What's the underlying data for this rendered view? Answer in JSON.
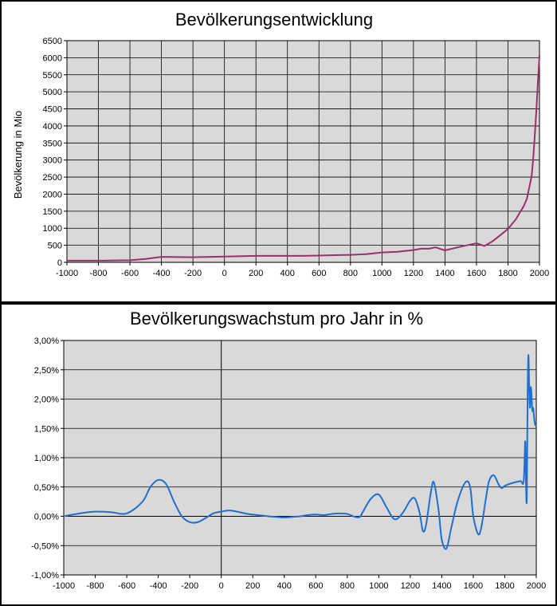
{
  "chart_data": [
    {
      "type": "line",
      "title": "Bevölkerungsentwicklung",
      "xlabel": "",
      "ylabel": "Bevölkerung in Mio",
      "xlim": [
        -1000,
        2000
      ],
      "ylim": [
        0,
        6500
      ],
      "x_ticks": [
        "-1000",
        "-800",
        "-600",
        "-400",
        "-200",
        "0",
        "200",
        "400",
        "600",
        "800",
        "1000",
        "1200",
        "1400",
        "1600",
        "1800",
        "2000"
      ],
      "y_ticks": [
        "0",
        "500",
        "1000",
        "1500",
        "2000",
        "2500",
        "3000",
        "3500",
        "4000",
        "4500",
        "5000",
        "5500",
        "6000",
        "6500"
      ],
      "grid": true,
      "series": [
        {
          "color": "#993366",
          "x": [
            -1000,
            -800,
            -600,
            -500,
            -400,
            -300,
            -200,
            0,
            200,
            400,
            500,
            600,
            700,
            800,
            900,
            1000,
            1100,
            1200,
            1250,
            1300,
            1340,
            1400,
            1500,
            1600,
            1650,
            1700,
            1750,
            1800,
            1850,
            1900,
            1920,
            1940,
            1950,
            1960,
            1970,
            1980,
            1990,
            2000
          ],
          "y": [
            50,
            50,
            60,
            100,
            160,
            155,
            150,
            170,
            190,
            190,
            190,
            200,
            210,
            220,
            240,
            290,
            310,
            360,
            400,
            400,
            440,
            350,
            460,
            560,
            480,
            610,
            790,
            980,
            1260,
            1650,
            1860,
            2300,
            2520,
            3020,
            3700,
            4440,
            5270,
            6070
          ]
        }
      ]
    },
    {
      "type": "line",
      "title": "Bevölkerungswachstum pro Jahr in %",
      "xlabel": "",
      "ylabel": "",
      "xlim": [
        -1000,
        2000
      ],
      "ylim": [
        -1.0,
        3.0
      ],
      "x_ticks": [
        "-1000",
        "-800",
        "-600",
        "-400",
        "-200",
        "0",
        "200",
        "400",
        "600",
        "800",
        "1000",
        "1200",
        "1400",
        "1600",
        "1800",
        "2000"
      ],
      "y_ticks": [
        "-1,00%",
        "-0,50%",
        "0,00%",
        "0,50%",
        "1,00%",
        "1,50%",
        "2,00%",
        "2,50%",
        "3,00%"
      ],
      "grid": true,
      "series": [
        {
          "color": "#1f6fd1",
          "x": [
            -1000,
            -900,
            -800,
            -700,
            -600,
            -500,
            -450,
            -400,
            -350,
            -300,
            -250,
            -200,
            -150,
            -100,
            -50,
            0,
            50,
            100,
            150,
            200,
            300,
            400,
            450,
            500,
            550,
            600,
            650,
            700,
            750,
            800,
            850,
            880,
            900,
            950,
            1000,
            1050,
            1100,
            1150,
            1200,
            1230,
            1260,
            1280,
            1300,
            1330,
            1350,
            1380,
            1400,
            1430,
            1460,
            1500,
            1550,
            1580,
            1600,
            1630,
            1650,
            1680,
            1700,
            1730,
            1760,
            1780,
            1800,
            1850,
            1900,
            1920,
            1930,
            1935,
            1940,
            1945,
            1950,
            1955,
            1960,
            1965,
            1970,
            1975,
            1980,
            1985,
            1990,
            1995,
            2000
          ],
          "y": [
            0.0,
            0.05,
            0.08,
            0.07,
            0.05,
            0.25,
            0.5,
            0.62,
            0.55,
            0.25,
            0.0,
            -0.1,
            -0.1,
            -0.03,
            0.05,
            0.08,
            0.1,
            0.08,
            0.05,
            0.03,
            0.0,
            -0.02,
            -0.01,
            0.0,
            0.02,
            0.03,
            0.02,
            0.04,
            0.05,
            0.04,
            -0.01,
            -0.01,
            0.08,
            0.3,
            0.37,
            0.15,
            -0.05,
            0.05,
            0.27,
            0.3,
            0.05,
            -0.25,
            -0.15,
            0.4,
            0.58,
            0.1,
            -0.4,
            -0.55,
            -0.2,
            0.25,
            0.58,
            0.5,
            0.0,
            -0.3,
            -0.2,
            0.3,
            0.6,
            0.7,
            0.55,
            0.48,
            0.52,
            0.57,
            0.6,
            0.6,
            1.28,
            0.5,
            0.33,
            2.05,
            2.75,
            2.2,
            1.85,
            2.2,
            2.05,
            1.8,
            1.85,
            1.72,
            1.6,
            1.55,
            1.57
          ]
        }
      ]
    }
  ]
}
